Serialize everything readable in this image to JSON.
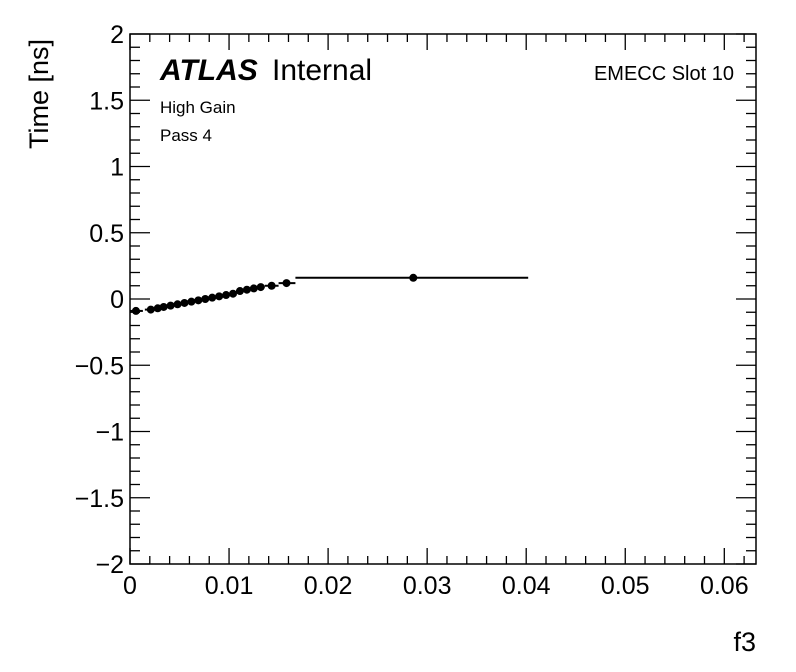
{
  "chart_data": {
    "type": "scatter",
    "xlabel": "f3",
    "ylabel": "Time [ns]",
    "xlim": [
      0,
      0.0632
    ],
    "ylim": [
      -2,
      2
    ],
    "x_ticks": [
      0,
      0.01,
      0.02,
      0.03,
      0.04,
      0.05,
      0.06
    ],
    "x_tick_labels": [
      "0",
      "0.01",
      "0.02",
      "0.03",
      "0.04",
      "0.05",
      "0.06"
    ],
    "y_ticks": [
      -2,
      -1.5,
      -1,
      -0.5,
      0,
      0.5,
      1,
      1.5,
      2
    ],
    "y_tick_labels": [
      "−2",
      "−1.5",
      "−1",
      "−0.5",
      "0",
      "0.5",
      "1",
      "1.5",
      "2"
    ],
    "grid": false,
    "annotations": {
      "atlas": "ATLAS",
      "internal": "Internal",
      "gain": "High Gain",
      "pass": "Pass 4",
      "slot": "EMECC Slot 10"
    },
    "series": [
      {
        "marker": "filled-circle",
        "color": "#000000",
        "points": [
          {
            "x": 0.0006,
            "y": -0.09,
            "xlo": 0.0,
            "xhi": 0.0013
          },
          {
            "x": 0.0021,
            "y": -0.08,
            "xlo": 0.0015,
            "xhi": 0.0025
          },
          {
            "x": 0.0028,
            "y": -0.07,
            "xlo": 0.0025,
            "xhi": 0.0031
          },
          {
            "x": 0.0034,
            "y": -0.06,
            "xlo": 0.0031,
            "xhi": 0.0037
          },
          {
            "x": 0.0041,
            "y": -0.05,
            "xlo": 0.0037,
            "xhi": 0.0044
          },
          {
            "x": 0.0048,
            "y": -0.04,
            "xlo": 0.0044,
            "xhi": 0.0051
          },
          {
            "x": 0.0055,
            "y": -0.03,
            "xlo": 0.0051,
            "xhi": 0.0058
          },
          {
            "x": 0.0062,
            "y": -0.02,
            "xlo": 0.0058,
            "xhi": 0.0065
          },
          {
            "x": 0.0069,
            "y": -0.01,
            "xlo": 0.0065,
            "xhi": 0.0072
          },
          {
            "x": 0.0076,
            "y": 0.0,
            "xlo": 0.0072,
            "xhi": 0.0079
          },
          {
            "x": 0.0083,
            "y": 0.01,
            "xlo": 0.0079,
            "xhi": 0.0086
          },
          {
            "x": 0.009,
            "y": 0.02,
            "xlo": 0.0086,
            "xhi": 0.0093
          },
          {
            "x": 0.0097,
            "y": 0.03,
            "xlo": 0.0093,
            "xhi": 0.01
          },
          {
            "x": 0.0104,
            "y": 0.04,
            "xlo": 0.01,
            "xhi": 0.0107
          },
          {
            "x": 0.0111,
            "y": 0.06,
            "xlo": 0.0107,
            "xhi": 0.0114
          },
          {
            "x": 0.0118,
            "y": 0.07,
            "xlo": 0.0114,
            "xhi": 0.0121
          },
          {
            "x": 0.0125,
            "y": 0.08,
            "xlo": 0.0121,
            "xhi": 0.0128
          },
          {
            "x": 0.0132,
            "y": 0.09,
            "xlo": 0.0128,
            "xhi": 0.0136
          },
          {
            "x": 0.0143,
            "y": 0.1,
            "xlo": 0.0136,
            "xhi": 0.015
          },
          {
            "x": 0.0158,
            "y": 0.12,
            "xlo": 0.015,
            "xhi": 0.0167
          },
          {
            "x": 0.0286,
            "y": 0.16,
            "xlo": 0.0167,
            "xhi": 0.0402
          }
        ]
      }
    ]
  }
}
